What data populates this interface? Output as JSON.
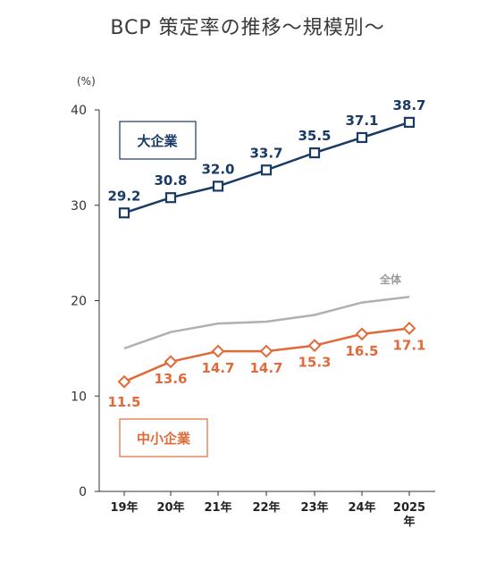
{
  "chart_data": {
    "type": "line",
    "title": "BCP 策定率の推移〜規模別〜",
    "y_unit": "(%)",
    "ylim": [
      0,
      40
    ],
    "yticks": [
      "0",
      "10",
      "20",
      "30",
      "40"
    ],
    "categories": [
      "19年",
      "20年",
      "21年",
      "22年",
      "23年",
      "24年",
      "2025"
    ],
    "last_category_suffix": "年",
    "grid": false,
    "series": [
      {
        "name": "大企業",
        "values": [
          29.2,
          30.8,
          32.0,
          33.7,
          35.5,
          37.1,
          38.7
        ],
        "labels": [
          "29.2",
          "30.8",
          "32.0",
          "33.7",
          "35.5",
          "37.1",
          "38.7"
        ],
        "color": "#1a3a66",
        "marker": "square"
      },
      {
        "name": "全体",
        "values": [
          15.0,
          16.7,
          17.6,
          17.8,
          18.5,
          19.8,
          20.4
        ],
        "color": "#b0b0b0",
        "marker": "none"
      },
      {
        "name": "中小企業",
        "values": [
          11.5,
          13.6,
          14.7,
          14.7,
          15.3,
          16.5,
          17.1
        ],
        "labels": [
          "11.5",
          "13.6",
          "14.7",
          "14.7",
          "15.3",
          "16.5",
          "17.1"
        ],
        "color": "#e06a3a",
        "marker": "diamond"
      }
    ]
  }
}
